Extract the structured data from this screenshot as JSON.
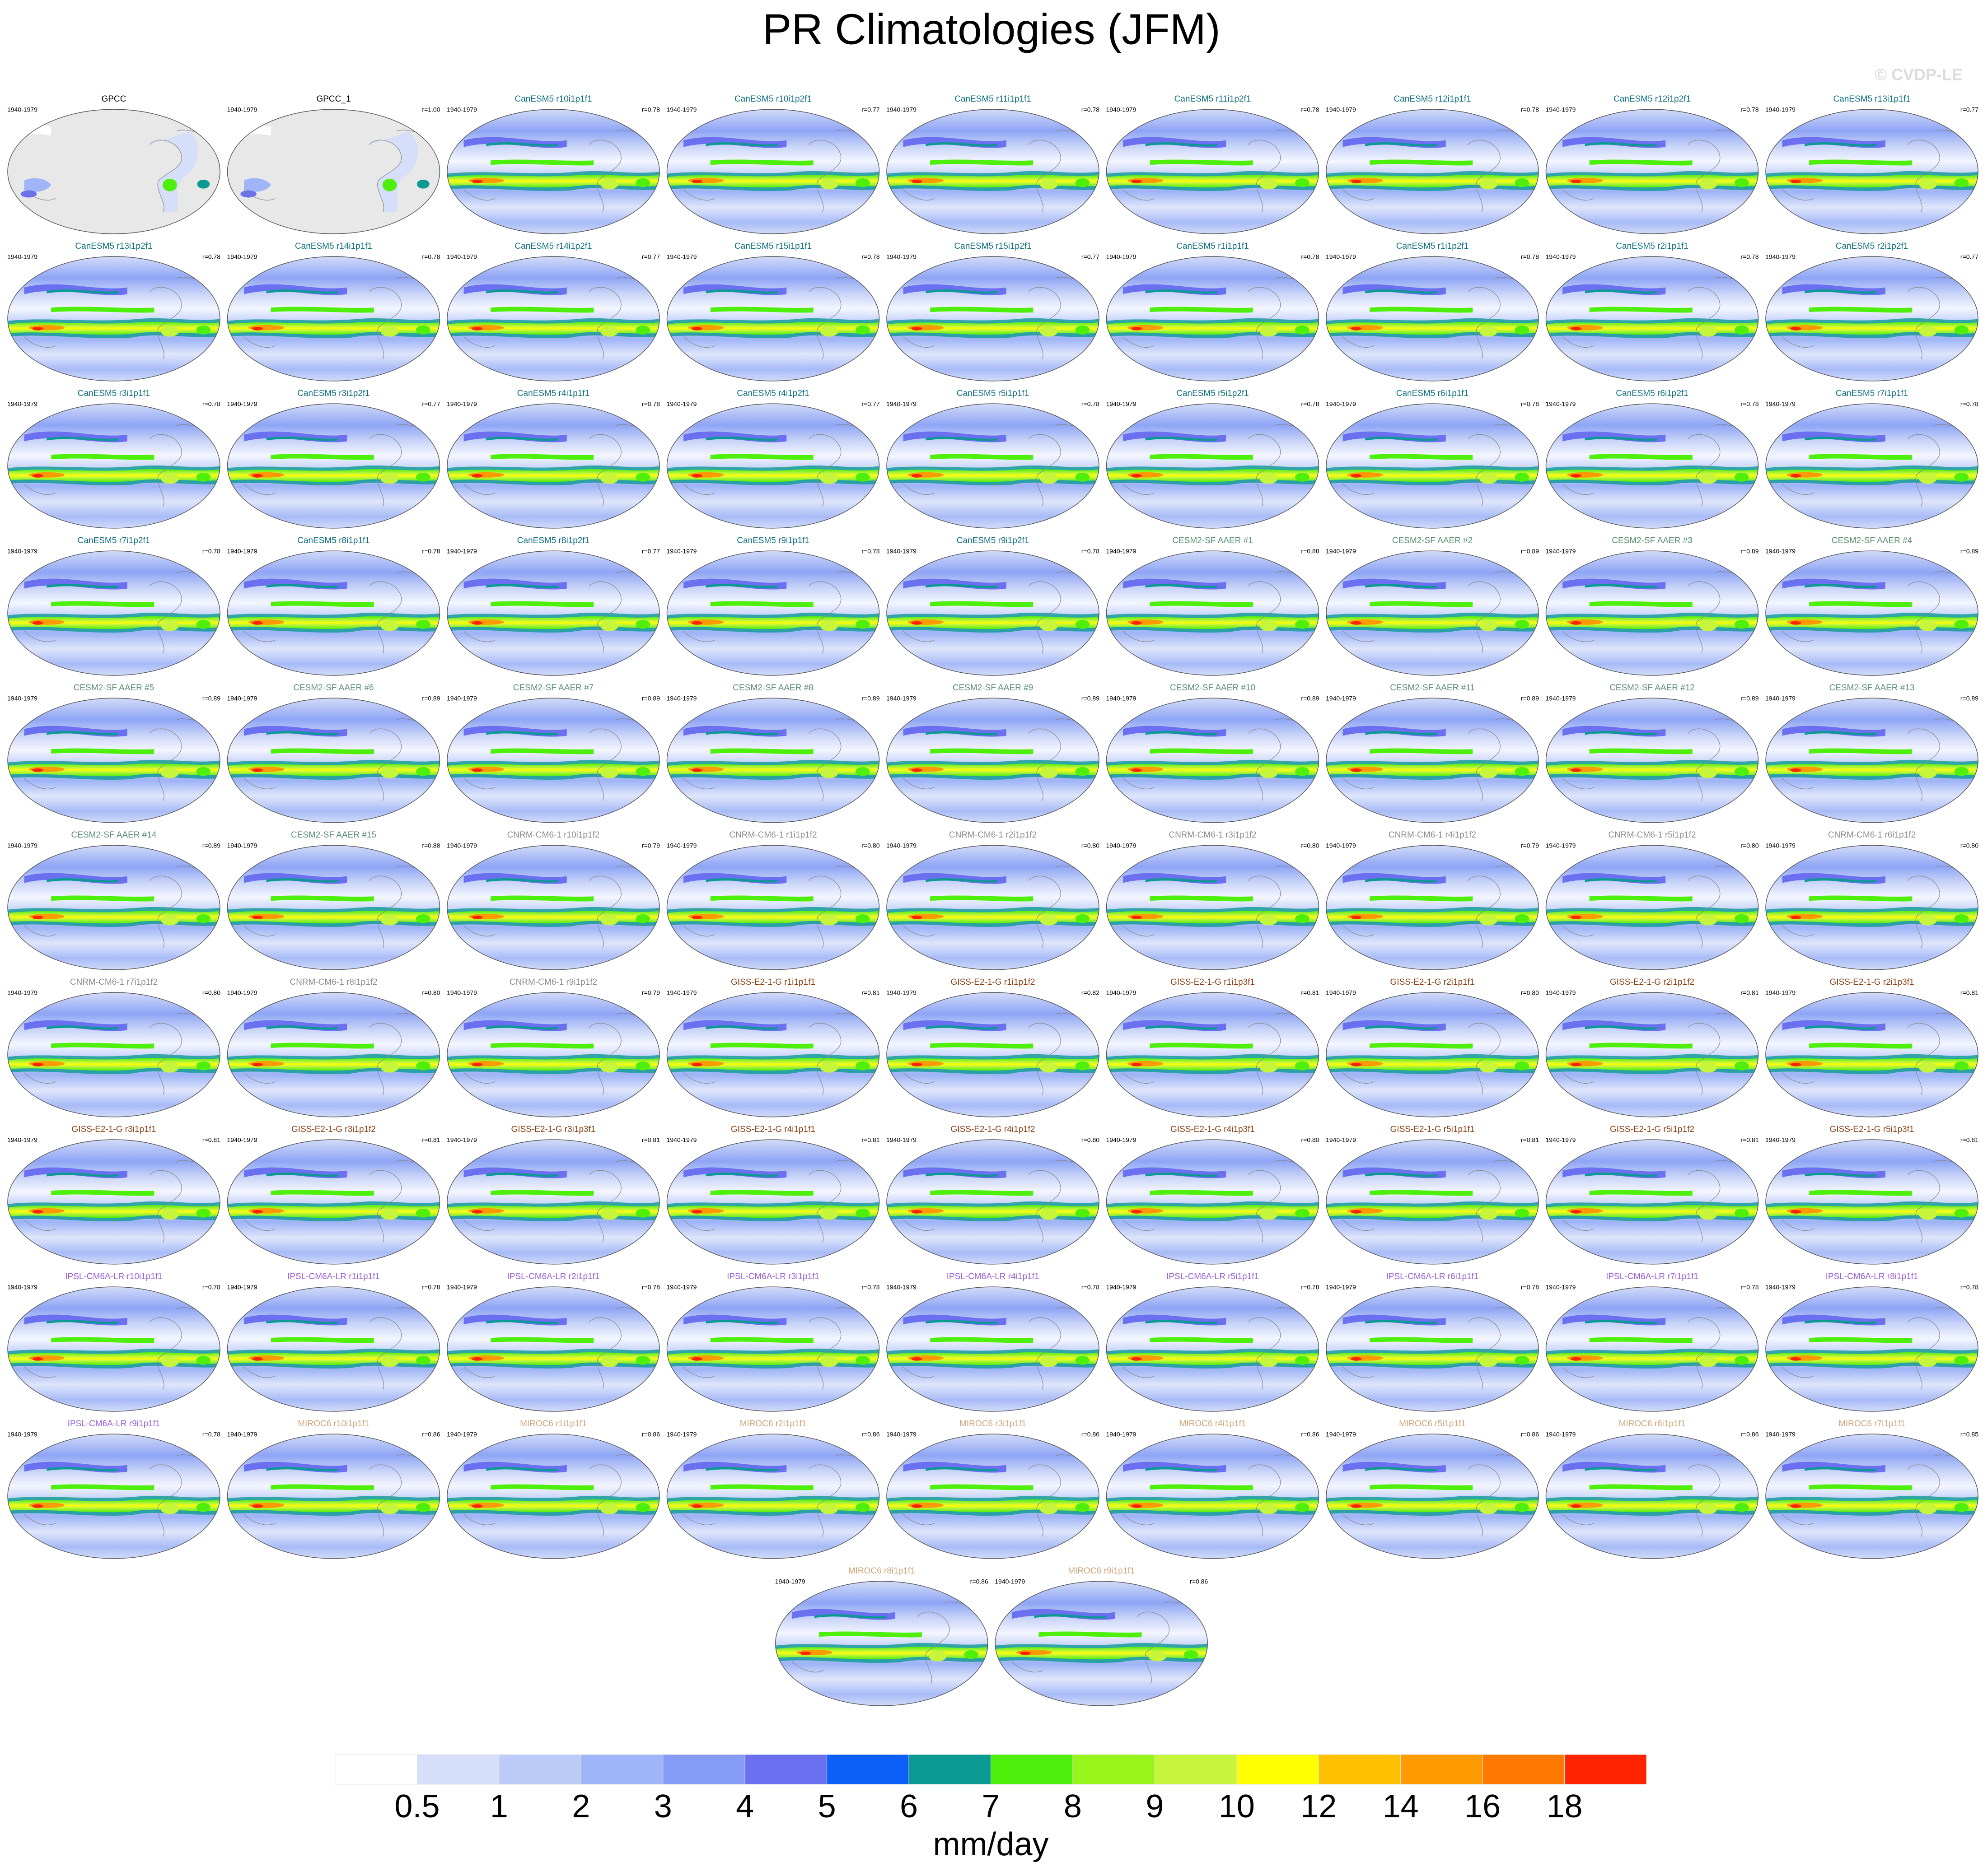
{
  "title": "PR Climatologies (JFM)",
  "credit": "© CVDP-LE",
  "groups": [
    {
      "color": "#000000",
      "map": "observed",
      "panels": [
        {
          "title": "GPCC",
          "period": "1940-1979"
        },
        {
          "title": "GPCC_1",
          "period": "1940-1979",
          "r": "r=1.00"
        }
      ]
    },
    {
      "color": "#0f6f80",
      "map": "model",
      "panels": [
        {
          "title": "CanESM5 r10i1p1f1",
          "period": "1940-1979",
          "r": "r=0.78"
        },
        {
          "title": "CanESM5 r10i1p2f1",
          "period": "1940-1979",
          "r": "r=0.77"
        },
        {
          "title": "CanESM5 r11i1p1f1",
          "period": "1940-1979",
          "r": "r=0.78"
        },
        {
          "title": "CanESM5 r11i1p2f1",
          "period": "1940-1979",
          "r": "r=0.78"
        },
        {
          "title": "CanESM5 r12i1p1f1",
          "period": "1940-1979",
          "r": "r=0.78"
        },
        {
          "title": "CanESM5 r12i1p2f1",
          "period": "1940-1979",
          "r": "r=0.78"
        },
        {
          "title": "CanESM5 r13i1p1f1",
          "period": "1940-1979",
          "r": "r=0.77"
        },
        {
          "title": "CanESM5 r13i1p2f1",
          "period": "1940-1979",
          "r": "r=0.78"
        },
        {
          "title": "CanESM5 r14i1p1f1",
          "period": "1940-1979",
          "r": "r=0.78"
        },
        {
          "title": "CanESM5 r14i1p2f1",
          "period": "1940-1979",
          "r": "r=0.77"
        },
        {
          "title": "CanESM5 r15i1p1f1",
          "period": "1940-1979",
          "r": "r=0.78"
        },
        {
          "title": "CanESM5 r15i1p2f1",
          "period": "1940-1979",
          "r": "r=0.77"
        },
        {
          "title": "CanESM5 r1i1p1f1",
          "period": "1940-1979",
          "r": "r=0.78"
        },
        {
          "title": "CanESM5 r1i1p2f1",
          "period": "1940-1979",
          "r": "r=0.78"
        },
        {
          "title": "CanESM5 r2i1p1f1",
          "period": "1940-1979",
          "r": "r=0.78"
        },
        {
          "title": "CanESM5 r2i1p2f1",
          "period": "1940-1979",
          "r": "r=0.77"
        },
        {
          "title": "CanESM5 r3i1p1f1",
          "period": "1940-1979",
          "r": "r=0.78"
        },
        {
          "title": "CanESM5 r3i1p2f1",
          "period": "1940-1979",
          "r": "r=0.77"
        },
        {
          "title": "CanESM5 r4i1p1f1",
          "period": "1940-1979",
          "r": "r=0.78"
        },
        {
          "title": "CanESM5 r4i1p2f1",
          "period": "1940-1979",
          "r": "r=0.77"
        },
        {
          "title": "CanESM5 r5i1p1f1",
          "period": "1940-1979",
          "r": "r=0.78"
        },
        {
          "title": "CanESM5 r5i1p2f1",
          "period": "1940-1979",
          "r": "r=0.78"
        },
        {
          "title": "CanESM5 r6i1p1f1",
          "period": "1940-1979",
          "r": "r=0.78"
        },
        {
          "title": "CanESM5 r6i1p2f1",
          "period": "1940-1979",
          "r": "r=0.78"
        },
        {
          "title": "CanESM5 r7i1p1f1",
          "period": "1940-1979",
          "r": "r=0.78"
        },
        {
          "title": "CanESM5 r7i1p2f1",
          "period": "1940-1979",
          "r": "r=0.78"
        },
        {
          "title": "CanESM5 r8i1p1f1",
          "period": "1940-1979",
          "r": "r=0.78"
        },
        {
          "title": "CanESM5 r8i1p2f1",
          "period": "1940-1979",
          "r": "r=0.77"
        },
        {
          "title": "CanESM5 r9i1p1f1",
          "period": "1940-1979",
          "r": "r=0.78"
        },
        {
          "title": "CanESM5 r9i1p2f1",
          "period": "1940-1979",
          "r": "r=0.78"
        }
      ]
    },
    {
      "color": "#5b8f72",
      "map": "model",
      "panels": [
        {
          "title": "CESM2-SF AAER #1",
          "period": "1940-1979",
          "r": "r=0.88"
        },
        {
          "title": "CESM2-SF AAER #2",
          "period": "1940-1979",
          "r": "r=0.89"
        },
        {
          "title": "CESM2-SF AAER #3",
          "period": "1940-1979",
          "r": "r=0.89"
        },
        {
          "title": "CESM2-SF AAER #4",
          "period": "1940-1979",
          "r": "r=0.89"
        },
        {
          "title": "CESM2-SF AAER #5",
          "period": "1940-1979",
          "r": "r=0.89"
        },
        {
          "title": "CESM2-SF AAER #6",
          "period": "1940-1979",
          "r": "r=0.89"
        },
        {
          "title": "CESM2-SF AAER #7",
          "period": "1940-1979",
          "r": "r=0.89"
        },
        {
          "title": "CESM2-SF AAER #8",
          "period": "1940-1979",
          "r": "r=0.89"
        },
        {
          "title": "CESM2-SF AAER #9",
          "period": "1940-1979",
          "r": "r=0.89"
        },
        {
          "title": "CESM2-SF AAER #10",
          "period": "1940-1979",
          "r": "r=0.89"
        },
        {
          "title": "CESM2-SF AAER #11",
          "period": "1940-1979",
          "r": "r=0.89"
        },
        {
          "title": "CESM2-SF AAER #12",
          "period": "1940-1979",
          "r": "r=0.89"
        },
        {
          "title": "CESM2-SF AAER #13",
          "period": "1940-1979",
          "r": "r=0.89"
        },
        {
          "title": "CESM2-SF AAER #14",
          "period": "1940-1979",
          "r": "r=0.89"
        },
        {
          "title": "CESM2-SF AAER #15",
          "period": "1940-1979",
          "r": "r=0.88"
        }
      ]
    },
    {
      "color": "#8c8c8c",
      "map": "model",
      "panels": [
        {
          "title": "CNRM-CM6-1 r10i1p1f2",
          "period": "1940-1979",
          "r": "r=0.79"
        },
        {
          "title": "CNRM-CM6-1 r1i1p1f2",
          "period": "1940-1979",
          "r": "r=0.80"
        },
        {
          "title": "CNRM-CM6-1 r2i1p1f2",
          "period": "1940-1979",
          "r": "r=0.80"
        },
        {
          "title": "CNRM-CM6-1 r3i1p1f2",
          "period": "1940-1979",
          "r": "r=0.80"
        },
        {
          "title": "CNRM-CM6-1 r4i1p1f2",
          "period": "1940-1979",
          "r": "r=0.79"
        },
        {
          "title": "CNRM-CM6-1 r5i1p1f2",
          "period": "1940-1979",
          "r": "r=0.80"
        },
        {
          "title": "CNRM-CM6-1 r6i1p1f2",
          "period": "1940-1979",
          "r": "r=0.80"
        },
        {
          "title": "CNRM-CM6-1 r7i1p1f2",
          "period": "1940-1979",
          "r": "r=0.80"
        },
        {
          "title": "CNRM-CM6-1 r8i1p1f2",
          "period": "1940-1979",
          "r": "r=0.80"
        },
        {
          "title": "CNRM-CM6-1 r9i1p1f2",
          "period": "1940-1979",
          "r": "r=0.79"
        }
      ]
    },
    {
      "color": "#8b3e12",
      "map": "model",
      "panels": [
        {
          "title": "GISS-E2-1-G r1i1p1f1",
          "period": "1940-1979",
          "r": "r=0.81"
        },
        {
          "title": "GISS-E2-1-G r1i1p1f2",
          "period": "1940-1979",
          "r": "r=0.82"
        },
        {
          "title": "GISS-E2-1-G r1i1p3f1",
          "period": "1940-1979",
          "r": "r=0.81"
        },
        {
          "title": "GISS-E2-1-G r2i1p1f1",
          "period": "1940-1979",
          "r": "r=0.80"
        },
        {
          "title": "GISS-E2-1-G r2i1p1f2",
          "period": "1940-1979",
          "r": "r=0.81"
        },
        {
          "title": "GISS-E2-1-G r2i1p3f1",
          "period": "1940-1979",
          "r": "r=0.81"
        },
        {
          "title": "GISS-E2-1-G r3i1p1f1",
          "period": "1940-1979",
          "r": "r=0.81"
        },
        {
          "title": "GISS-E2-1-G r3i1p1f2",
          "period": "1940-1979",
          "r": "r=0.81"
        },
        {
          "title": "GISS-E2-1-G r3i1p3f1",
          "period": "1940-1979",
          "r": "r=0.81"
        },
        {
          "title": "GISS-E2-1-G r4i1p1f1",
          "period": "1940-1979",
          "r": "r=0.81"
        },
        {
          "title": "GISS-E2-1-G r4i1p1f2",
          "period": "1940-1979",
          "r": "r=0.80"
        },
        {
          "title": "GISS-E2-1-G r4i1p3f1",
          "period": "1940-1979",
          "r": "r=0.80"
        },
        {
          "title": "GISS-E2-1-G r5i1p1f1",
          "period": "1940-1979",
          "r": "r=0.81"
        },
        {
          "title": "GISS-E2-1-G r5i1p1f2",
          "period": "1940-1979",
          "r": "r=0.81"
        },
        {
          "title": "GISS-E2-1-G r5i1p3f1",
          "period": "1940-1979",
          "r": "r=0.81"
        }
      ]
    },
    {
      "color": "#9a5fd6",
      "map": "model",
      "panels": [
        {
          "title": "IPSL-CM6A-LR r10i1p1f1",
          "period": "1940-1979",
          "r": "r=0.78"
        },
        {
          "title": "IPSL-CM6A-LR r1i1p1f1",
          "period": "1940-1979",
          "r": "r=0.78"
        },
        {
          "title": "IPSL-CM6A-LR r2i1p1f1",
          "period": "1940-1979",
          "r": "r=0.78"
        },
        {
          "title": "IPSL-CM6A-LR r3i1p1f1",
          "period": "1940-1979",
          "r": "r=0.78"
        },
        {
          "title": "IPSL-CM6A-LR r4i1p1f1",
          "period": "1940-1979",
          "r": "r=0.78"
        },
        {
          "title": "IPSL-CM6A-LR r5i1p1f1",
          "period": "1940-1979",
          "r": "r=0.78"
        },
        {
          "title": "IPSL-CM6A-LR r6i1p1f1",
          "period": "1940-1979",
          "r": "r=0.78"
        },
        {
          "title": "IPSL-CM6A-LR r7i1p1f1",
          "period": "1940-1979",
          "r": "r=0.78"
        },
        {
          "title": "IPSL-CM6A-LR r8i1p1f1",
          "period": "1940-1979",
          "r": "r=0.78"
        },
        {
          "title": "IPSL-CM6A-LR r9i1p1f1",
          "period": "1940-1979",
          "r": "r=0.78"
        }
      ]
    },
    {
      "color": "#d0a47a",
      "map": "model",
      "panels": [
        {
          "title": "MIROC6 r10i1p1f1",
          "period": "1940-1979",
          "r": "r=0.86"
        },
        {
          "title": "MIROC6 r1i1p1f1",
          "period": "1940-1979",
          "r": "r=0.86"
        },
        {
          "title": "MIROC6 r2i1p1f1",
          "period": "1940-1979",
          "r": "r=0.86"
        },
        {
          "title": "MIROC6 r3i1p1f1",
          "period": "1940-1979",
          "r": "r=0.86"
        },
        {
          "title": "MIROC6 r4i1p1f1",
          "period": "1940-1979",
          "r": "r=0.86"
        },
        {
          "title": "MIROC6 r5i1p1f1",
          "period": "1940-1979",
          "r": "r=0.86"
        },
        {
          "title": "MIROC6 r6i1p1f1",
          "period": "1940-1979",
          "r": "r=0.86"
        },
        {
          "title": "MIROC6 r7i1p1f1",
          "period": "1940-1979",
          "r": "r=0.85"
        },
        {
          "title": "MIROC6 r8i1p1f1",
          "period": "1940-1979",
          "r": "r=0.86"
        },
        {
          "title": "MIROC6 r9i1p1f1",
          "period": "1940-1979",
          "r": "r=0.86"
        }
      ]
    }
  ],
  "colorbar": {
    "levels": [
      0.5,
      1,
      2,
      3,
      4,
      5,
      6,
      7,
      8,
      9,
      10,
      12,
      14,
      16,
      18
    ],
    "colors": [
      "#ffffff",
      "#d6dff9",
      "#bccbf8",
      "#9fb5f7",
      "#879cf6",
      "#6a70ef",
      "#0b5ef6",
      "#0b9a92",
      "#4def0b",
      "#98f51b",
      "#c6f53b",
      "#ffff00",
      "#ffc000",
      "#ff9b00",
      "#ff7a00",
      "#ff2400"
    ],
    "units": "mm/day"
  }
}
